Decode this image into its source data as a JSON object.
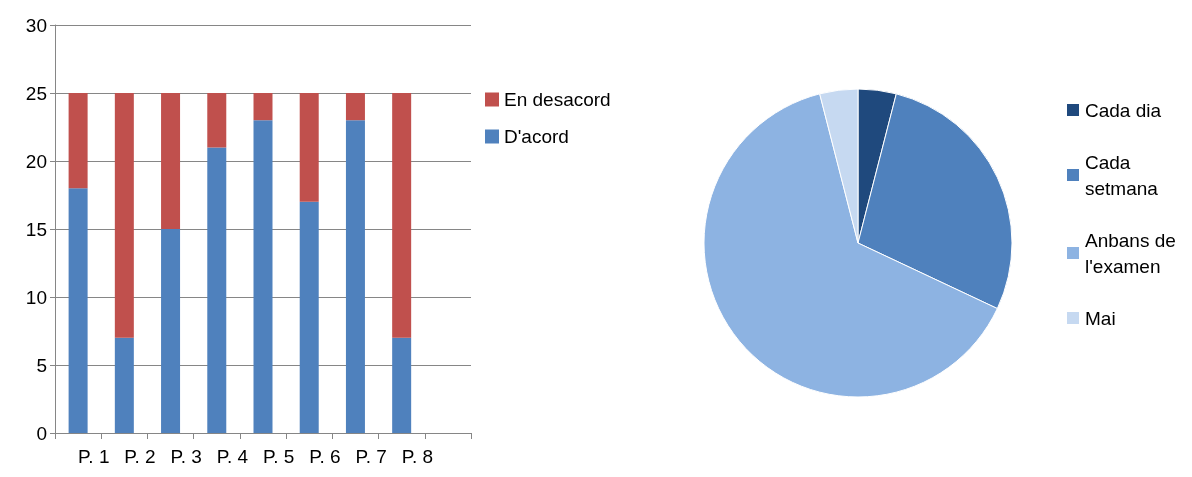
{
  "chart_data": [
    {
      "type": "bar",
      "stacked": true,
      "categories": [
        "P. 1",
        "P. 2",
        "P. 3",
        "P. 4",
        "P. 5",
        "P. 6",
        "P. 7",
        "P. 8",
        null
      ],
      "series": [
        {
          "name": "D'acord",
          "color": "#4f81bd",
          "values": [
            18,
            7,
            15,
            21,
            23,
            17,
            23,
            7,
            null
          ]
        },
        {
          "name": "En desacord",
          "color": "#c0504d",
          "values": [
            7,
            18,
            10,
            4,
            2,
            8,
            2,
            18,
            null
          ]
        }
      ],
      "ylim": [
        0,
        30
      ],
      "yticks": [
        0,
        5,
        10,
        15,
        20,
        25,
        30
      ],
      "grid": "y",
      "legend": "right"
    },
    {
      "type": "pie",
      "categories": [
        "Cada dia",
        "Cada setmana",
        "Anbans de l'examen",
        "Mai"
      ],
      "values": [
        4,
        28,
        64,
        4
      ],
      "colors": [
        "#1f497d",
        "#4f81bd",
        "#8db3e2",
        "#c6d9f1"
      ],
      "legend": "right"
    }
  ]
}
